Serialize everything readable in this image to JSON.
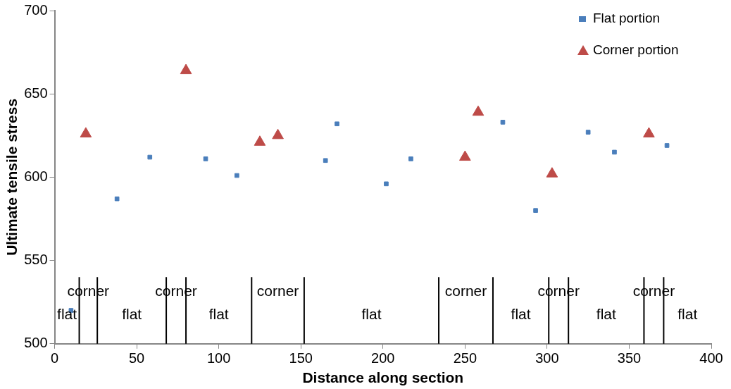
{
  "chart_data": {
    "type": "scatter",
    "xlabel": "Distance along section",
    "ylabel": "Ultimate tensile stress",
    "xlim": [
      0,
      400
    ],
    "xticks": [
      0,
      50,
      100,
      150,
      200,
      250,
      300,
      350,
      400
    ],
    "ylim": [
      500,
      700
    ],
    "yticks": [
      500,
      550,
      600,
      650,
      700
    ],
    "grid": false,
    "legend": "top right",
    "series": [
      {
        "name": "Flat portion",
        "color": "#4a7ebb",
        "marker": "square",
        "x": [
          10,
          38,
          58,
          92,
          111,
          165,
          172,
          202,
          217,
          273,
          293,
          325,
          341,
          373
        ],
        "values": [
          520,
          587,
          612,
          611,
          601,
          610,
          632,
          596,
          611,
          633,
          580,
          627,
          615,
          619
        ]
      },
      {
        "name": "Corner portion",
        "color": "#be4b48",
        "marker": "triangle",
        "x": [
          19,
          80,
          125,
          136,
          250,
          258,
          303,
          362
        ],
        "values": [
          626,
          664,
          621,
          625,
          612,
          639,
          602,
          626
        ]
      }
    ],
    "ref_lines": [
      {
        "axis": "x",
        "value": 15
      },
      {
        "axis": "x",
        "value": 26
      },
      {
        "axis": "x",
        "value": 68
      },
      {
        "axis": "x",
        "value": 80
      },
      {
        "axis": "x",
        "value": 120
      },
      {
        "axis": "x",
        "value": 152
      },
      {
        "axis": "x",
        "value": 234
      },
      {
        "axis": "x",
        "value": 267
      },
      {
        "axis": "x",
        "value": 301
      },
      {
        "axis": "x",
        "value": 313
      },
      {
        "axis": "x",
        "value": 359
      },
      {
        "axis": "x",
        "value": 371
      }
    ],
    "annotations": [
      "flat",
      "corner",
      "flat",
      "corner",
      "flat",
      "corner",
      "flat",
      "corner",
      "flat",
      "corner",
      "flat",
      "corner",
      "flat"
    ]
  }
}
